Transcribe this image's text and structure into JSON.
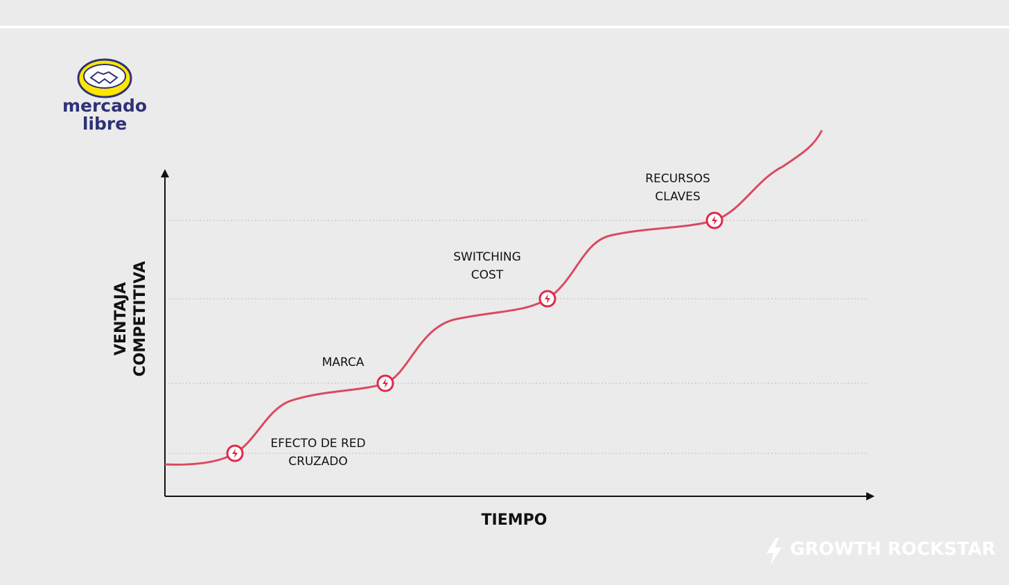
{
  "logo": {
    "line1": "mercado",
    "line2": "libre"
  },
  "axes": {
    "y_label": [
      "VENTAJA",
      "COMPETITIVA"
    ],
    "x_label": "TIEMPO"
  },
  "milestones": [
    {
      "lines": [
        "EFECTO DE RED",
        "CRUZADO"
      ]
    },
    {
      "lines": [
        "MARCA"
      ]
    },
    {
      "lines": [
        "SWITCHING",
        "COST"
      ]
    },
    {
      "lines": [
        "RECURSOS",
        "CLAVES"
      ]
    }
  ],
  "brand": "GROWTH ROCKSTAR"
}
